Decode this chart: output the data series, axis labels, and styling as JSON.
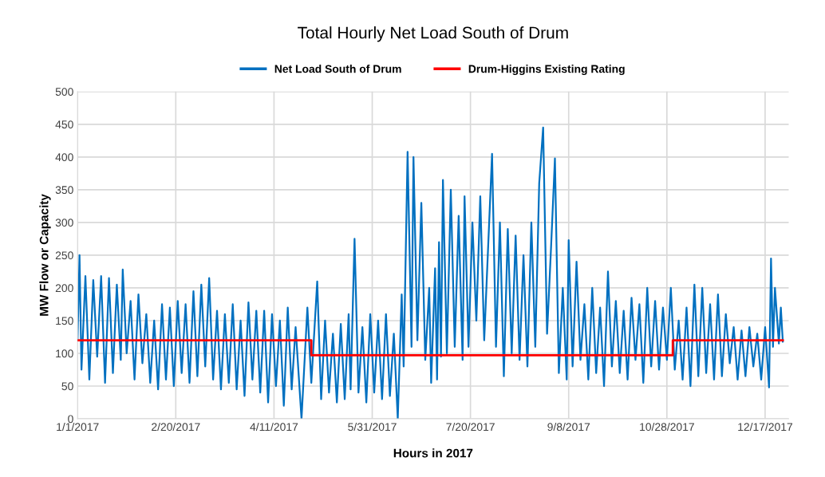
{
  "chart_data": {
    "type": "line",
    "title": "Total Hourly Net Load South of Drum",
    "xlabel": "Hours in 2017",
    "ylabel": "MW Flow or Capacity",
    "xlim": [
      "2017-01-01",
      "2017-12-29"
    ],
    "ylim": [
      0,
      500
    ],
    "yticks": [
      0,
      50,
      100,
      150,
      200,
      250,
      300,
      350,
      400,
      450,
      500
    ],
    "xticks": [
      {
        "value": "2017-01-01",
        "label": "1/1/2017"
      },
      {
        "value": "2017-02-20",
        "label": "2/20/2017"
      },
      {
        "value": "2017-04-11",
        "label": "4/11/2017"
      },
      {
        "value": "2017-05-31",
        "label": "5/31/2017"
      },
      {
        "value": "2017-07-20",
        "label": "7/20/2017"
      },
      {
        "value": "2017-09-08",
        "label": "9/8/2017"
      },
      {
        "value": "2017-10-28",
        "label": "10/28/2017"
      },
      {
        "value": "2017-12-17",
        "label": "12/17/2017"
      }
    ],
    "grid": true,
    "legend": "top",
    "series": [
      {
        "name": "Net Load South of Drum",
        "color": "#0070c0",
        "x": [
          "2017-01-01",
          "2017-01-02",
          "2017-01-03",
          "2017-01-05",
          "2017-01-07",
          "2017-01-09",
          "2017-01-11",
          "2017-01-13",
          "2017-01-15",
          "2017-01-17",
          "2017-01-19",
          "2017-01-21",
          "2017-01-23",
          "2017-01-24",
          "2017-01-26",
          "2017-01-28",
          "2017-01-30",
          "2017-02-01",
          "2017-02-03",
          "2017-02-05",
          "2017-02-07",
          "2017-02-09",
          "2017-02-11",
          "2017-02-13",
          "2017-02-15",
          "2017-02-17",
          "2017-02-19",
          "2017-02-21",
          "2017-02-23",
          "2017-02-25",
          "2017-02-27",
          "2017-03-01",
          "2017-03-03",
          "2017-03-05",
          "2017-03-07",
          "2017-03-09",
          "2017-03-11",
          "2017-03-13",
          "2017-03-15",
          "2017-03-17",
          "2017-03-19",
          "2017-03-21",
          "2017-03-23",
          "2017-03-25",
          "2017-03-27",
          "2017-03-29",
          "2017-03-31",
          "2017-04-02",
          "2017-04-04",
          "2017-04-06",
          "2017-04-08",
          "2017-04-10",
          "2017-04-12",
          "2017-04-14",
          "2017-04-16",
          "2017-04-18",
          "2017-04-20",
          "2017-04-22",
          "2017-04-25",
          "2017-04-28",
          "2017-04-30",
          "2017-05-03",
          "2017-05-05",
          "2017-05-07",
          "2017-05-09",
          "2017-05-11",
          "2017-05-13",
          "2017-05-15",
          "2017-05-17",
          "2017-05-19",
          "2017-05-20",
          "2017-05-22",
          "2017-05-24",
          "2017-05-26",
          "2017-05-28",
          "2017-05-30",
          "2017-06-01",
          "2017-06-03",
          "2017-06-05",
          "2017-06-07",
          "2017-06-09",
          "2017-06-11",
          "2017-06-13",
          "2017-06-15",
          "2017-06-16",
          "2017-06-18",
          "2017-06-20",
          "2017-06-21",
          "2017-06-23",
          "2017-06-25",
          "2017-06-27",
          "2017-06-29",
          "2017-06-30",
          "2017-07-02",
          "2017-07-03",
          "2017-07-04",
          "2017-07-05",
          "2017-07-06",
          "2017-07-08",
          "2017-07-10",
          "2017-07-12",
          "2017-07-14",
          "2017-07-16",
          "2017-07-17",
          "2017-07-19",
          "2017-07-21",
          "2017-07-23",
          "2017-07-25",
          "2017-07-27",
          "2017-07-31",
          "2017-08-02",
          "2017-08-04",
          "2017-08-06",
          "2017-08-08",
          "2017-08-10",
          "2017-08-12",
          "2017-08-14",
          "2017-08-16",
          "2017-08-18",
          "2017-08-20",
          "2017-08-22",
          "2017-08-24",
          "2017-08-26",
          "2017-08-28",
          "2017-08-30",
          "2017-09-01",
          "2017-09-03",
          "2017-09-05",
          "2017-09-07",
          "2017-09-08",
          "2017-09-10",
          "2017-09-12",
          "2017-09-14",
          "2017-09-16",
          "2017-09-18",
          "2017-09-20",
          "2017-09-22",
          "2017-09-24",
          "2017-09-26",
          "2017-09-28",
          "2017-09-30",
          "2017-10-02",
          "2017-10-04",
          "2017-10-06",
          "2017-10-08",
          "2017-10-10",
          "2017-10-12",
          "2017-10-14",
          "2017-10-16",
          "2017-10-18",
          "2017-10-20",
          "2017-10-22",
          "2017-10-24",
          "2017-10-26",
          "2017-10-28",
          "2017-10-30",
          "2017-11-01",
          "2017-11-03",
          "2017-11-05",
          "2017-11-07",
          "2017-11-09",
          "2017-11-11",
          "2017-11-13",
          "2017-11-15",
          "2017-11-17",
          "2017-11-19",
          "2017-11-21",
          "2017-11-23",
          "2017-11-25",
          "2017-11-27",
          "2017-11-29",
          "2017-12-01",
          "2017-12-03",
          "2017-12-05",
          "2017-12-07",
          "2017-12-09",
          "2017-12-11",
          "2017-12-13",
          "2017-12-15",
          "2017-12-17",
          "2017-12-19",
          "2017-12-20",
          "2017-12-21",
          "2017-12-22",
          "2017-12-24",
          "2017-12-25",
          "2017-12-26"
        ],
        "values": [
          120,
          250,
          75,
          218,
          60,
          212,
          95,
          218,
          55,
          215,
          70,
          205,
          90,
          228,
          100,
          180,
          60,
          190,
          85,
          160,
          55,
          150,
          45,
          175,
          60,
          170,
          50,
          180,
          70,
          175,
          55,
          195,
          65,
          205,
          80,
          215,
          60,
          165,
          45,
          160,
          55,
          175,
          45,
          150,
          35,
          178,
          60,
          165,
          40,
          165,
          25,
          160,
          50,
          150,
          20,
          170,
          45,
          140,
          0,
          170,
          55,
          210,
          30,
          150,
          40,
          130,
          25,
          145,
          30,
          160,
          45,
          275,
          40,
          140,
          25,
          160,
          40,
          150,
          30,
          160,
          35,
          130,
          0,
          190,
          80,
          408,
          110,
          400,
          120,
          330,
          90,
          200,
          55,
          230,
          60,
          270,
          95,
          365,
          100,
          350,
          110,
          310,
          90,
          340,
          110,
          300,
          150,
          340,
          120,
          405,
          110,
          300,
          65,
          290,
          100,
          280,
          90,
          250,
          80,
          300,
          110,
          360,
          445,
          130,
          260,
          398,
          70,
          200,
          60,
          273,
          80,
          240,
          90,
          175,
          60,
          200,
          70,
          170,
          50,
          225,
          80,
          180,
          70,
          165,
          60,
          185,
          90,
          175,
          55,
          200,
          80,
          180,
          75,
          170,
          90,
          200,
          75,
          150,
          60,
          170,
          50,
          205,
          65,
          200,
          70,
          175,
          60,
          190,
          65,
          160,
          85,
          140,
          60,
          135,
          65,
          140,
          80,
          130,
          60,
          140,
          48,
          245,
          110,
          200,
          115,
          170,
          118
        ]
      },
      {
        "name": "Drum-Higgins Existing Rating",
        "color": "#ff0000",
        "type": "step",
        "x": [
          "2017-01-01",
          "2017-04-30",
          "2017-10-31",
          "2017-12-26"
        ],
        "values": [
          120,
          97,
          120,
          120
        ]
      }
    ]
  }
}
